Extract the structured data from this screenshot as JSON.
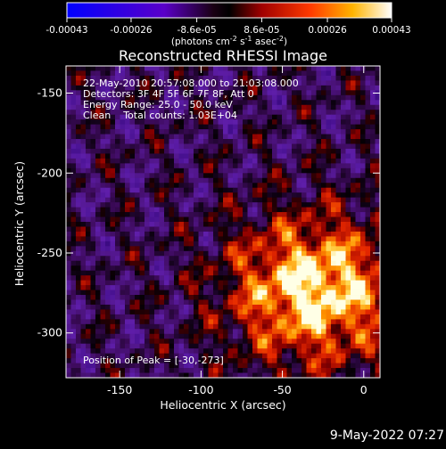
{
  "chart_data": {
    "type": "heatmap",
    "title": "Reconstructed RHESSI Image",
    "xlabel": "Heliocentric X (arcsec)",
    "ylabel": "Heliocentric Y (arcsec)",
    "xlim": [
      -183,
      10
    ],
    "ylim": [
      -328,
      -133
    ],
    "x_ticks": [
      -150,
      -100,
      -50,
      0
    ],
    "y_ticks": [
      -150,
      -200,
      -250,
      -300
    ],
    "colorbar": {
      "min": -0.00043,
      "max": 0.00043,
      "tick_values": [
        -0.00043,
        -0.00026,
        -8.6e-05,
        8.6e-05,
        0.00026,
        0.00043
      ],
      "tick_labels": [
        "-0.00043",
        "-0.00026",
        "-8.6e-05",
        "8.6e-05",
        "0.00026",
        "0.00043"
      ],
      "unit_label": "(photons cm",
      "unit_sup1": "-2",
      "unit_mid1": " s",
      "unit_sup2": "-1",
      "unit_mid2": " asec",
      "unit_sup3": "-2",
      "unit_end": ")"
    },
    "annotations": [
      "22-May-2010 20:57:08.000 to 21:03:08.000",
      "Detectors: 3F 4F 5F 6F 7F 8F, Att 0",
      "Energy Range: 25.0 - 50.0 keV",
      "Clean    Total counts: 1.03E+04"
    ],
    "peak_label": "Position of Peak = [-30,-273]",
    "peak": [
      -30,
      -273
    ],
    "grid": false
  },
  "footer": {
    "timestamp": "9-May-2022 07:27"
  }
}
